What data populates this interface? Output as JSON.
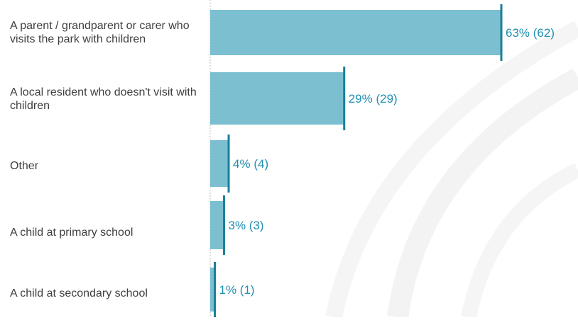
{
  "chart_data": {
    "type": "bar",
    "orientation": "horizontal",
    "categories": [
      "A parent / grandparent or carer who visits the park with children",
      "A local resident who doesn't visit with children",
      "Other",
      "A child at primary school",
      "A child at secondary school"
    ],
    "percent": [
      63,
      29,
      4,
      3,
      1
    ],
    "counts": [
      62,
      29,
      4,
      3,
      1
    ],
    "value_labels": [
      "63% (62)",
      "29% (29)",
      "4% (4)",
      "3% (3)",
      "1% (1)"
    ],
    "xlim": [
      0,
      100
    ],
    "grid": false,
    "legend": "none",
    "colors": {
      "bar": "#7cbfd1",
      "bar_end": "#1a7f99",
      "value_label": "#1f8fb0",
      "category_label": "#3f3f3f",
      "axis": "#bdbdbd",
      "watermark": "#f2f2f2"
    }
  }
}
